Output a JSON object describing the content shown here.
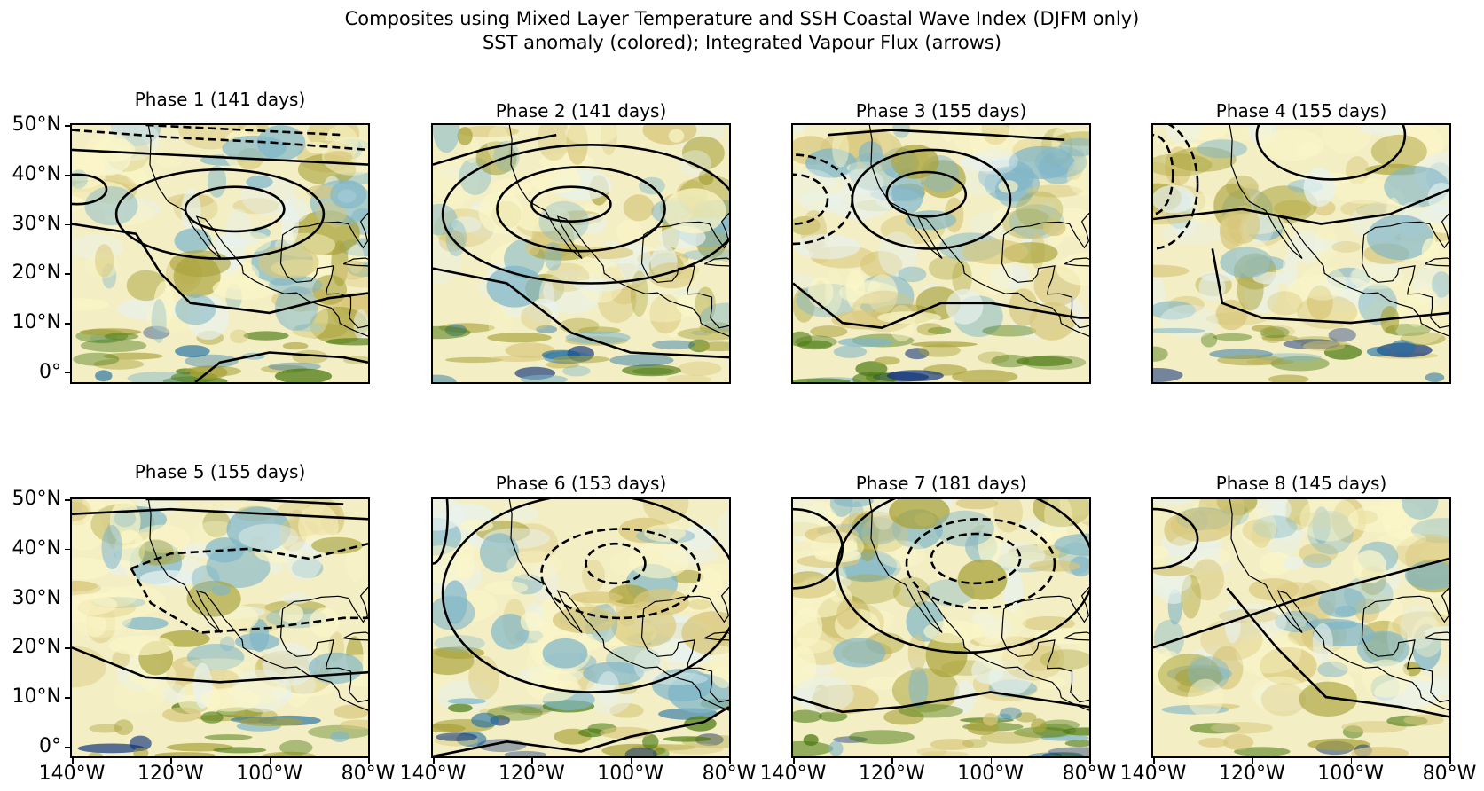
{
  "figure": {
    "title": "Composites using Mixed Layer Temperature and SSH Coastal Wave Index (DJFM only)",
    "subtitle": "SST anomaly (colored); Integrated Vapour Flux (arrows)"
  },
  "axes": {
    "y_ticks": [
      "50°N",
      "40°N",
      "30°N",
      "20°N",
      "10°N",
      "0°"
    ],
    "x_ticks": [
      "140°W",
      "120°W",
      "100°W",
      "80°W"
    ]
  },
  "chart_data": {
    "type": "heatmap",
    "title": "Composites using Mixed Layer Temperature and SSH Coastal Wave Index (DJFM only)",
    "subtitle": "SST anomaly (colored); Integrated Vapour Flux (arrows)",
    "xlim": [
      -140,
      -80
    ],
    "ylim": [
      -2,
      50
    ],
    "x_ticks": [
      -140,
      -120,
      -100,
      -80
    ],
    "y_ticks": [
      50,
      40,
      30,
      20,
      10,
      0
    ],
    "colormap": [
      "#0b2f7a",
      "#1f6fa3",
      "#7fb6c9",
      "#e8f2ee",
      "#fbf6c8",
      "#d8c77a",
      "#a9a23a",
      "#4b7a12"
    ],
    "contour_style": {
      "positive": "solid",
      "negative": "dashed",
      "color": "#000000"
    },
    "panels": [
      {
        "phase": 1,
        "label": "Phase 1 (141 days)",
        "days": 141
      },
      {
        "phase": 2,
        "label": "Phase 2 (141 days)",
        "days": 141
      },
      {
        "phase": 3,
        "label": "Phase 3 (155 days)",
        "days": 155
      },
      {
        "phase": 4,
        "label": "Phase 4 (155 days)",
        "days": 155
      },
      {
        "phase": 5,
        "label": "Phase 5 (155 days)",
        "days": 155
      },
      {
        "phase": 6,
        "label": "Phase 6 (153 days)",
        "days": 153
      },
      {
        "phase": 7,
        "label": "Phase 7 (181 days)",
        "days": 181
      },
      {
        "phase": 8,
        "label": "Phase 8 (145 days)",
        "days": 145
      }
    ]
  }
}
